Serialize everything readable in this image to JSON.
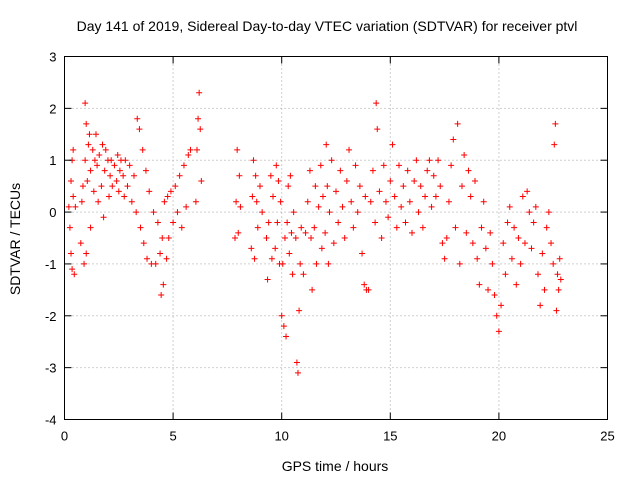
{
  "chart_data": {
    "type": "scatter",
    "title": "Day 141 of 2019, Sidereal Day-to-day VTEC variation (SDTVAR) for receiver ptvl",
    "xlabel": "GPS time / hours",
    "ylabel": "SDTVAR / TECUs",
    "xlim": [
      0,
      25
    ],
    "ylim": [
      -4,
      3
    ],
    "xticks": [
      0,
      5,
      10,
      15,
      20,
      25
    ],
    "yticks": [
      -4,
      -3,
      -2,
      -1,
      0,
      1,
      2,
      3
    ],
    "grid": true,
    "marker": "+",
    "color": "#ff0000",
    "series": [
      {
        "name": "ptvl",
        "points": [
          [
            0.2,
            0.1
          ],
          [
            0.25,
            -0.3
          ],
          [
            0.3,
            0.6
          ],
          [
            0.3,
            -0.8
          ],
          [
            0.35,
            1.0
          ],
          [
            0.35,
            -1.1
          ],
          [
            0.4,
            1.2
          ],
          [
            0.4,
            0.3
          ],
          [
            0.45,
            -1.2
          ],
          [
            0.5,
            0.1
          ],
          [
            0.75,
            -0.6
          ],
          [
            0.8,
            0.2
          ],
          [
            0.85,
            0.5
          ],
          [
            0.9,
            -1.0
          ],
          [
            0.95,
            1.0
          ],
          [
            0.95,
            2.1
          ],
          [
            1.0,
            1.7
          ],
          [
            1.0,
            -0.8
          ],
          [
            1.05,
            0.6
          ],
          [
            1.1,
            1.3
          ],
          [
            1.15,
            1.5
          ],
          [
            1.2,
            0.8
          ],
          [
            1.2,
            -0.3
          ],
          [
            1.3,
            1.2
          ],
          [
            1.35,
            0.4
          ],
          [
            1.4,
            1.0
          ],
          [
            1.45,
            1.5
          ],
          [
            1.5,
            0.9
          ],
          [
            1.55,
            0.2
          ],
          [
            1.6,
            1.1
          ],
          [
            1.7,
            0.5
          ],
          [
            1.75,
            1.3
          ],
          [
            1.8,
            -0.1
          ],
          [
            1.85,
            0.8
          ],
          [
            1.9,
            1.2
          ],
          [
            2.0,
            1.0
          ],
          [
            2.05,
            0.3
          ],
          [
            2.1,
            0.7
          ],
          [
            2.15,
            1.0
          ],
          [
            2.2,
            0.5
          ],
          [
            2.3,
            0.9
          ],
          [
            2.4,
            0.6
          ],
          [
            2.45,
            1.1
          ],
          [
            2.5,
            0.4
          ],
          [
            2.55,
            0.8
          ],
          [
            2.6,
            1.0
          ],
          [
            2.7,
            0.7
          ],
          [
            2.75,
            0.3
          ],
          [
            2.8,
            1.0
          ],
          [
            2.9,
            0.5
          ],
          [
            3.0,
            0.9
          ],
          [
            3.1,
            0.2
          ],
          [
            3.2,
            0.7
          ],
          [
            3.3,
            0.0
          ],
          [
            3.35,
            1.8
          ],
          [
            3.45,
            1.6
          ],
          [
            3.5,
            -0.3
          ],
          [
            3.6,
            1.2
          ],
          [
            3.65,
            -0.6
          ],
          [
            3.75,
            0.8
          ],
          [
            3.8,
            -0.9
          ],
          [
            3.9,
            0.4
          ],
          [
            4.0,
            -1.0
          ],
          [
            4.1,
            0.0
          ],
          [
            4.2,
            -1.0
          ],
          [
            4.3,
            -0.2
          ],
          [
            4.4,
            -0.8
          ],
          [
            4.45,
            -1.6
          ],
          [
            4.5,
            -0.5
          ],
          [
            4.55,
            -1.4
          ],
          [
            4.6,
            0.2
          ],
          [
            4.7,
            -0.9
          ],
          [
            4.75,
            0.3
          ],
          [
            4.8,
            -0.5
          ],
          [
            4.9,
            0.4
          ],
          [
            5.0,
            -0.2
          ],
          [
            5.1,
            0.5
          ],
          [
            5.2,
            0.0
          ],
          [
            5.3,
            0.7
          ],
          [
            5.4,
            -0.3
          ],
          [
            5.5,
            0.9
          ],
          [
            5.6,
            0.1
          ],
          [
            5.7,
            1.1
          ],
          [
            5.8,
            1.2
          ],
          [
            6.05,
            0.2
          ],
          [
            6.1,
            1.2
          ],
          [
            6.15,
            1.8
          ],
          [
            6.2,
            2.3
          ],
          [
            6.25,
            1.6
          ],
          [
            6.3,
            0.6
          ],
          [
            7.85,
            -0.5
          ],
          [
            7.9,
            0.2
          ],
          [
            7.95,
            1.2
          ],
          [
            8.0,
            -0.4
          ],
          [
            8.05,
            0.7
          ],
          [
            8.1,
            0.1
          ],
          [
            8.6,
            -0.7
          ],
          [
            8.65,
            0.3
          ],
          [
            8.7,
            1.0
          ],
          [
            8.75,
            -0.9
          ],
          [
            8.8,
            0.7
          ],
          [
            8.85,
            0.2
          ],
          [
            8.9,
            -0.3
          ],
          [
            9.0,
            0.5
          ],
          [
            9.1,
            0.0
          ],
          [
            9.3,
            -0.5
          ],
          [
            9.35,
            -1.3
          ],
          [
            9.4,
            -0.2
          ],
          [
            9.5,
            0.7
          ],
          [
            9.55,
            -0.9
          ],
          [
            9.6,
            0.3
          ],
          [
            9.7,
            -0.7
          ],
          [
            9.75,
            0.9
          ],
          [
            9.8,
            -0.2
          ],
          [
            9.85,
            0.6
          ],
          [
            9.9,
            -1.0
          ],
          [
            9.95,
            0.2
          ],
          [
            10.0,
            -2.0
          ],
          [
            10.05,
            -1.0
          ],
          [
            10.1,
            -2.2
          ],
          [
            10.15,
            -0.5
          ],
          [
            10.2,
            -2.4
          ],
          [
            10.25,
            -0.2
          ],
          [
            10.3,
            0.5
          ],
          [
            10.35,
            -0.8
          ],
          [
            10.4,
            0.7
          ],
          [
            10.45,
            -0.4
          ],
          [
            10.5,
            -1.2
          ],
          [
            10.55,
            0.0
          ],
          [
            10.65,
            -0.5
          ],
          [
            10.7,
            -2.9
          ],
          [
            10.75,
            -3.1
          ],
          [
            10.8,
            -1.9
          ],
          [
            10.85,
            -1.0
          ],
          [
            10.9,
            -0.3
          ],
          [
            11.0,
            -1.2
          ],
          [
            11.1,
            -0.4
          ],
          [
            11.2,
            0.2
          ],
          [
            11.3,
            0.8
          ],
          [
            11.35,
            -0.5
          ],
          [
            11.4,
            -1.5
          ],
          [
            11.5,
            -0.3
          ],
          [
            11.55,
            0.5
          ],
          [
            11.6,
            -1.0
          ],
          [
            11.7,
            0.1
          ],
          [
            11.8,
            0.9
          ],
          [
            11.85,
            -0.7
          ],
          [
            11.9,
            0.3
          ],
          [
            12.0,
            -0.4
          ],
          [
            12.05,
            1.3
          ],
          [
            12.1,
            0.5
          ],
          [
            12.15,
            -1.0
          ],
          [
            12.2,
            0.0
          ],
          [
            12.3,
            1.0
          ],
          [
            12.4,
            -0.6
          ],
          [
            12.5,
            0.4
          ],
          [
            12.6,
            -0.2
          ],
          [
            12.7,
            0.8
          ],
          [
            12.8,
            0.1
          ],
          [
            12.9,
            -0.5
          ],
          [
            13.0,
            0.6
          ],
          [
            13.1,
            1.2
          ],
          [
            13.2,
            0.2
          ],
          [
            13.3,
            -0.3
          ],
          [
            13.4,
            0.9
          ],
          [
            13.5,
            0.0
          ],
          [
            13.6,
            0.5
          ],
          [
            13.7,
            -0.8
          ],
          [
            13.8,
            -1.4
          ],
          [
            13.85,
            0.3
          ],
          [
            13.9,
            -1.5
          ],
          [
            14.0,
            -1.5
          ],
          [
            14.1,
            0.2
          ],
          [
            14.2,
            0.8
          ],
          [
            14.3,
            -0.2
          ],
          [
            14.35,
            2.1
          ],
          [
            14.4,
            1.6
          ],
          [
            14.5,
            0.4
          ],
          [
            14.6,
            -0.5
          ],
          [
            14.7,
            0.9
          ],
          [
            14.8,
            0.2
          ],
          [
            14.9,
            -0.1
          ],
          [
            15.0,
            0.6
          ],
          [
            15.1,
            1.3
          ],
          [
            15.2,
            0.3
          ],
          [
            15.3,
            -0.3
          ],
          [
            15.4,
            0.9
          ],
          [
            15.5,
            0.1
          ],
          [
            15.6,
            0.5
          ],
          [
            15.7,
            -0.2
          ],
          [
            15.8,
            0.8
          ],
          [
            15.9,
            0.2
          ],
          [
            16.0,
            -0.4
          ],
          [
            16.1,
            0.6
          ],
          [
            16.2,
            1.0
          ],
          [
            16.3,
            0.0
          ],
          [
            16.4,
            0.5
          ],
          [
            16.5,
            -0.3
          ],
          [
            16.6,
            0.3
          ],
          [
            16.7,
            0.8
          ],
          [
            16.8,
            1.0
          ],
          [
            16.9,
            0.1
          ],
          [
            17.0,
            0.7
          ],
          [
            17.1,
            0.3
          ],
          [
            17.2,
            1.0
          ],
          [
            17.3,
            0.5
          ],
          [
            17.4,
            -0.6
          ],
          [
            17.5,
            -0.9
          ],
          [
            17.6,
            -0.5
          ],
          [
            17.7,
            0.2
          ],
          [
            17.8,
            0.9
          ],
          [
            17.9,
            1.4
          ],
          [
            18.0,
            -0.3
          ],
          [
            18.1,
            1.7
          ],
          [
            18.2,
            -1.0
          ],
          [
            18.3,
            0.5
          ],
          [
            18.4,
            1.1
          ],
          [
            18.5,
            -0.4
          ],
          [
            18.6,
            0.8
          ],
          [
            18.7,
            0.3
          ],
          [
            18.8,
            -0.6
          ],
          [
            18.9,
            0.6
          ],
          [
            19.0,
            -0.9
          ],
          [
            19.1,
            -1.4
          ],
          [
            19.2,
            -0.3
          ],
          [
            19.3,
            0.2
          ],
          [
            19.4,
            -0.7
          ],
          [
            19.5,
            -1.5
          ],
          [
            19.6,
            -0.4
          ],
          [
            19.7,
            -1.0
          ],
          [
            19.8,
            -1.6
          ],
          [
            19.9,
            -2.0
          ],
          [
            20.0,
            -2.3
          ],
          [
            20.1,
            -1.8
          ],
          [
            20.2,
            -0.6
          ],
          [
            20.3,
            -1.2
          ],
          [
            20.4,
            -0.2
          ],
          [
            20.5,
            0.1
          ],
          [
            20.6,
            -0.9
          ],
          [
            20.7,
            -0.3
          ],
          [
            20.8,
            -1.4
          ],
          [
            20.9,
            -0.5
          ],
          [
            21.0,
            -1.0
          ],
          [
            21.1,
            0.3
          ],
          [
            21.2,
            -0.6
          ],
          [
            21.3,
            0.4
          ],
          [
            21.4,
            0.0
          ],
          [
            21.5,
            -0.7
          ],
          [
            21.6,
            -0.2
          ],
          [
            21.7,
            0.1
          ],
          [
            21.8,
            -1.2
          ],
          [
            21.9,
            -1.8
          ],
          [
            22.0,
            -0.8
          ],
          [
            22.1,
            -1.5
          ],
          [
            22.2,
            -0.3
          ],
          [
            22.3,
            0.0
          ],
          [
            22.4,
            -0.6
          ],
          [
            22.5,
            -1.0
          ],
          [
            22.55,
            1.3
          ],
          [
            22.6,
            1.7
          ],
          [
            22.65,
            -1.9
          ],
          [
            22.7,
            -1.2
          ],
          [
            22.75,
            -1.5
          ],
          [
            22.8,
            -0.9
          ],
          [
            22.85,
            -1.3
          ]
        ]
      }
    ]
  }
}
